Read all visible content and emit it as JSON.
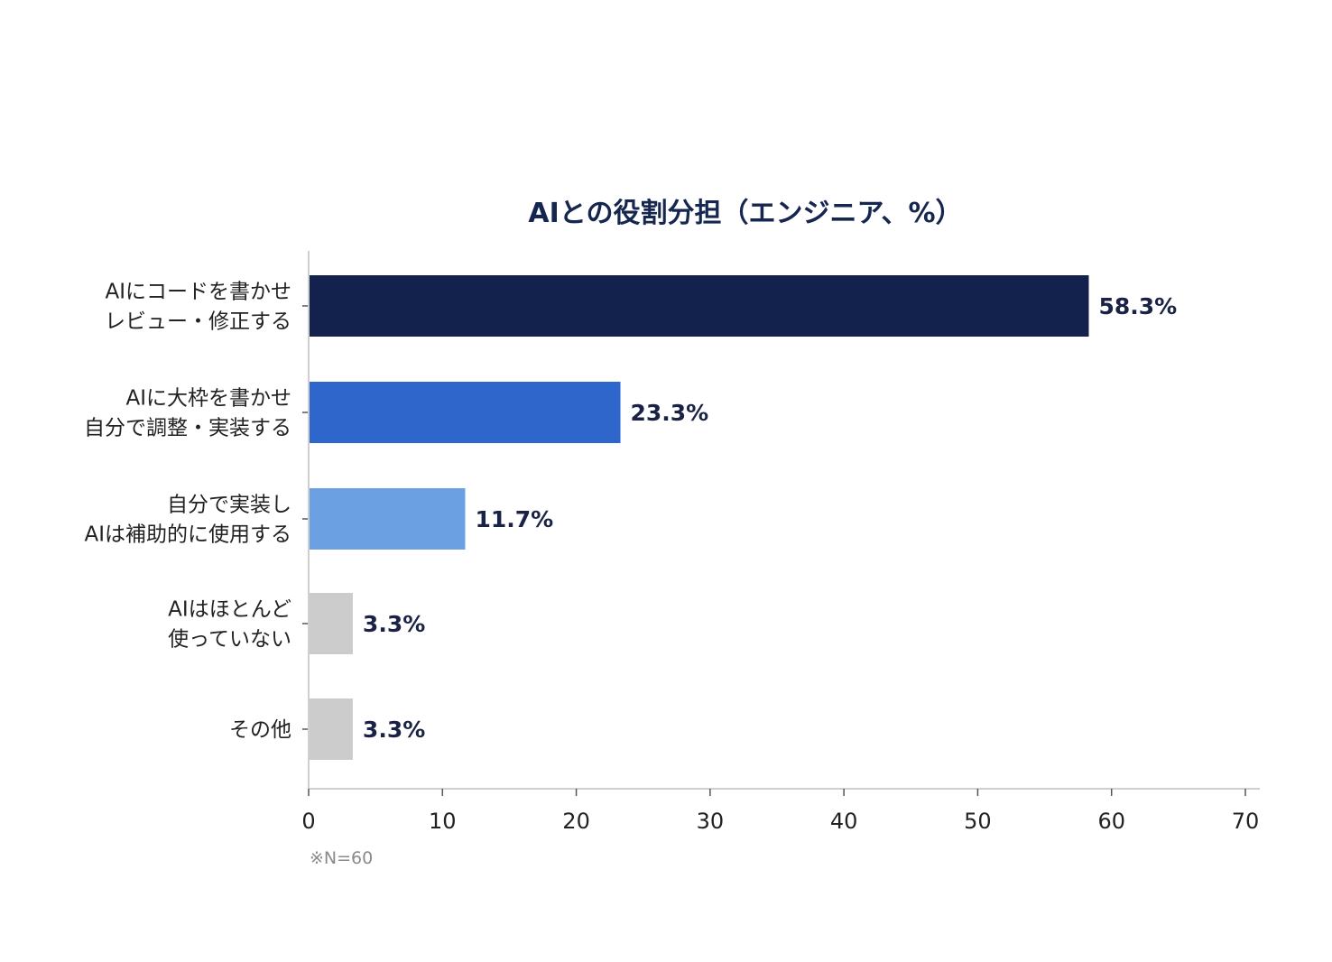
{
  "chart_data": {
    "type": "bar",
    "orientation": "horizontal",
    "title": "AIとの役割分担（エンジニア、%）",
    "categories": [
      [
        "AIにコードを書かせ",
        "レビュー・修正する"
      ],
      [
        "AIに大枠を書かせ",
        "自分で調整・実装する"
      ],
      [
        "自分で実装し",
        "AIは補助的に使用する"
      ],
      [
        "AIはほとんど",
        "使っていない"
      ],
      [
        "その他"
      ]
    ],
    "values": [
      58.3,
      23.3,
      11.7,
      3.3,
      3.3
    ],
    "value_labels": [
      "58.3%",
      "23.3%",
      "11.7%",
      "3.3%",
      "3.3%"
    ],
    "bar_colors": [
      "#13214d",
      "#2e66cc",
      "#6ba0e3",
      "#cccccc",
      "#cccccc"
    ],
    "xlim": [
      0,
      70
    ],
    "xticks": [
      0,
      10,
      20,
      30,
      40,
      50,
      60,
      70
    ],
    "xtick_labels": [
      "0",
      "10",
      "20",
      "30",
      "40",
      "50",
      "60",
      "70"
    ],
    "grid": false,
    "legend": "none",
    "note": "※N=60"
  }
}
